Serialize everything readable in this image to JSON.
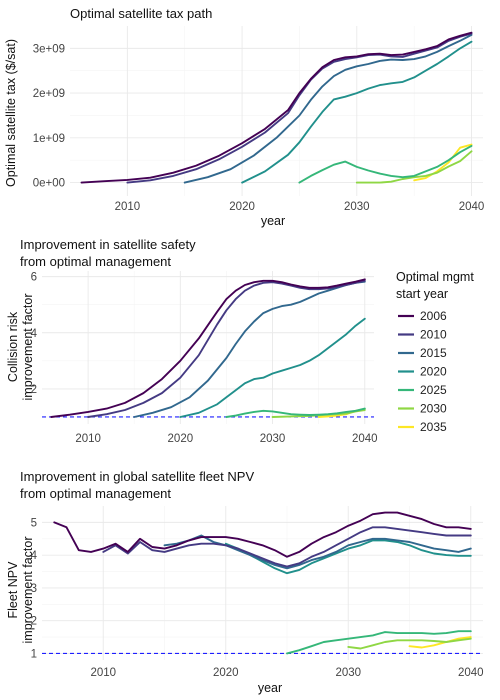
{
  "palette": {
    "2006": "#440154",
    "2010": "#443a83",
    "2015": "#31688e",
    "2020": "#21908c",
    "2025": "#35b779",
    "2030": "#8fd744",
    "2035": "#fde725",
    "baseline": "#1f1fff"
  },
  "legend": {
    "title_line1": "Optimal mgmt",
    "title_line2": "start year",
    "items": [
      "2006",
      "2010",
      "2015",
      "2020",
      "2025",
      "2030",
      "2035"
    ]
  },
  "chart_data": [
    {
      "id": "tax",
      "type": "line",
      "title": "Optimal satellite tax path",
      "subtitle": "",
      "xlabel": "year",
      "ylabel": "Optimal satellite tax ($/sat)",
      "xlim": [
        2005,
        2041
      ],
      "ylim": [
        -300000000.0,
        3500000000.0
      ],
      "xticks": [
        2010,
        2020,
        2030,
        2040
      ],
      "xtick_labels": [
        "2010",
        "2020",
        "2030",
        "2040"
      ],
      "yticks": [
        0,
        1000000000.0,
        2000000000.0,
        3000000000.0
      ],
      "ytick_labels": [
        "0e+00",
        "1e+09",
        "2e+09",
        "3e+09"
      ],
      "grid": true,
      "series": [
        {
          "name": "2006",
          "x": [
            2006,
            2008,
            2010,
            2012,
            2014,
            2016,
            2018,
            2020,
            2022,
            2024,
            2025,
            2026,
            2027,
            2028,
            2029,
            2030,
            2031,
            2032,
            2033,
            2034,
            2035,
            2036,
            2037,
            2038,
            2039,
            2040
          ],
          "y": [
            0.0,
            30000000.0,
            60000000.0,
            110000000.0,
            220000000.0,
            380000000.0,
            600000000.0,
            880000000.0,
            1200000000.0,
            1620000000.0,
            2000000000.0,
            2320000000.0,
            2580000000.0,
            2740000000.0,
            2800000000.0,
            2820000000.0,
            2870000000.0,
            2880000000.0,
            2850000000.0,
            2860000000.0,
            2920000000.0,
            2980000000.0,
            3050000000.0,
            3200000000.0,
            3280000000.0,
            3350000000.0
          ]
        },
        {
          "name": "2010",
          "x": [
            2010,
            2012,
            2014,
            2016,
            2018,
            2020,
            2022,
            2024,
            2025,
            2026,
            2027,
            2028,
            2029,
            2030,
            2031,
            2032,
            2033,
            2034,
            2035,
            2036,
            2037,
            2038,
            2039,
            2040
          ],
          "y": [
            0.0,
            50000000.0,
            150000000.0,
            300000000.0,
            520000000.0,
            800000000.0,
            1120000000.0,
            1550000000.0,
            1950000000.0,
            2300000000.0,
            2550000000.0,
            2700000000.0,
            2760000000.0,
            2800000000.0,
            2850000000.0,
            2860000000.0,
            2820000000.0,
            2810000000.0,
            2880000000.0,
            2950000000.0,
            3020000000.0,
            3170000000.0,
            3260000000.0,
            3330000000.0
          ]
        },
        {
          "name": "2015",
          "x": [
            2015,
            2017,
            2019,
            2021,
            2023,
            2025,
            2026,
            2027,
            2028,
            2029,
            2030,
            2031,
            2032,
            2033,
            2034,
            2035,
            2036,
            2037,
            2038,
            2039,
            2040
          ],
          "y": [
            0.0,
            120000000.0,
            300000000.0,
            600000000.0,
            1000000000.0,
            1500000000.0,
            1850000000.0,
            2150000000.0,
            2380000000.0,
            2520000000.0,
            2600000000.0,
            2650000000.0,
            2720000000.0,
            2750000000.0,
            2740000000.0,
            2760000000.0,
            2820000000.0,
            2920000000.0,
            3050000000.0,
            3170000000.0,
            3300000000.0
          ]
        },
        {
          "name": "2020",
          "x": [
            2020,
            2022,
            2024,
            2025,
            2026,
            2027,
            2028,
            2029,
            2030,
            2031,
            2032,
            2033,
            2034,
            2035,
            2036,
            2037,
            2038,
            2039,
            2040
          ],
          "y": [
            0.0,
            250000000.0,
            620000000.0,
            900000000.0,
            1250000000.0,
            1580000000.0,
            1860000000.0,
            1920000000.0,
            2000000000.0,
            2100000000.0,
            2180000000.0,
            2220000000.0,
            2250000000.0,
            2350000000.0,
            2500000000.0,
            2650000000.0,
            2820000000.0,
            3000000000.0,
            3150000000.0
          ]
        },
        {
          "name": "2025",
          "x": [
            2025,
            2026,
            2027,
            2028,
            2029,
            2030,
            2031,
            2032,
            2033,
            2034,
            2035,
            2036,
            2037,
            2038,
            2039,
            2040
          ],
          "y": [
            0.0,
            150000000.0,
            280000000.0,
            400000000.0,
            470000000.0,
            350000000.0,
            270000000.0,
            200000000.0,
            150000000.0,
            120000000.0,
            150000000.0,
            250000000.0,
            350000000.0,
            500000000.0,
            680000000.0,
            820000000.0
          ]
        },
        {
          "name": "2030",
          "x": [
            2030,
            2031,
            2032,
            2033,
            2034,
            2035,
            2036,
            2037,
            2038,
            2039,
            2040
          ],
          "y": [
            0.0,
            0.0,
            0.0,
            20000000.0,
            80000000.0,
            120000000.0,
            150000000.0,
            220000000.0,
            360000000.0,
            480000000.0,
            700000000.0
          ]
        },
        {
          "name": "2035",
          "x": [
            2035,
            2036,
            2037,
            2038,
            2039,
            2040
          ],
          "y": [
            50000000.0,
            100000000.0,
            250000000.0,
            450000000.0,
            780000000.0,
            850000000.0
          ]
        }
      ]
    },
    {
      "id": "safety",
      "type": "line",
      "title": "Improvement in satellite safety",
      "subtitle": "from optimal management",
      "xlabel": "",
      "ylabel": "Collision risk improvement factor",
      "ylabel_line1": "Collision risk",
      "ylabel_line2": "improvement factor",
      "xlim": [
        2005,
        2041
      ],
      "ylim": [
        0.75,
        6.2
      ],
      "xticks": [
        2010,
        2020,
        2030,
        2040
      ],
      "xtick_labels": [
        "2010",
        "2020",
        "2030",
        "2040"
      ],
      "yticks": [
        2,
        4,
        6
      ],
      "ytick_labels": [
        "2",
        "4",
        "6"
      ],
      "baseline": 1,
      "grid": true,
      "series": [
        {
          "name": "2006",
          "x": [
            2006,
            2008,
            2010,
            2012,
            2014,
            2016,
            2018,
            2020,
            2022,
            2024,
            2025,
            2026,
            2027,
            2028,
            2029,
            2030,
            2031,
            2032,
            2033,
            2034,
            2035,
            2036,
            2037,
            2038,
            2039,
            2040
          ],
          "y": [
            1.0,
            1.08,
            1.18,
            1.3,
            1.5,
            1.85,
            2.35,
            3.0,
            3.8,
            4.75,
            5.2,
            5.5,
            5.7,
            5.8,
            5.85,
            5.85,
            5.8,
            5.72,
            5.65,
            5.6,
            5.6,
            5.62,
            5.68,
            5.75,
            5.82,
            5.9
          ]
        },
        {
          "name": "2010",
          "x": [
            2010,
            2012,
            2014,
            2016,
            2018,
            2020,
            2022,
            2024,
            2025,
            2026,
            2027,
            2028,
            2029,
            2030,
            2031,
            2032,
            2033,
            2034,
            2035,
            2036,
            2037,
            2038,
            2039,
            2040
          ],
          "y": [
            1.0,
            1.1,
            1.25,
            1.5,
            1.85,
            2.4,
            3.2,
            4.3,
            4.8,
            5.2,
            5.5,
            5.68,
            5.78,
            5.8,
            5.75,
            5.68,
            5.6,
            5.55,
            5.55,
            5.58,
            5.63,
            5.7,
            5.78,
            5.85
          ]
        },
        {
          "name": "2015",
          "x": [
            2015,
            2017,
            2019,
            2021,
            2023,
            2025,
            2026,
            2027,
            2028,
            2029,
            2030,
            2031,
            2032,
            2033,
            2034,
            2035,
            2036,
            2037,
            2038,
            2039,
            2040
          ],
          "y": [
            1.0,
            1.15,
            1.35,
            1.7,
            2.3,
            3.1,
            3.6,
            4.05,
            4.4,
            4.7,
            4.85,
            4.95,
            5.0,
            5.1,
            5.25,
            5.4,
            5.5,
            5.6,
            5.7,
            5.78,
            5.82
          ]
        },
        {
          "name": "2020",
          "x": [
            2020,
            2022,
            2024,
            2025,
            2026,
            2027,
            2028,
            2029,
            2030,
            2031,
            2032,
            2033,
            2034,
            2035,
            2036,
            2037,
            2038,
            2039,
            2040
          ],
          "y": [
            1.0,
            1.15,
            1.45,
            1.7,
            1.95,
            2.2,
            2.35,
            2.4,
            2.55,
            2.65,
            2.75,
            2.85,
            3.0,
            3.2,
            3.45,
            3.7,
            3.95,
            4.25,
            4.5
          ]
        },
        {
          "name": "2025",
          "x": [
            2025,
            2026,
            2027,
            2028,
            2029,
            2030,
            2031,
            2032,
            2033,
            2034,
            2035,
            2036,
            2037,
            2038,
            2039,
            2040
          ],
          "y": [
            1.0,
            1.05,
            1.12,
            1.18,
            1.22,
            1.2,
            1.15,
            1.1,
            1.08,
            1.07,
            1.08,
            1.1,
            1.13,
            1.18,
            1.22,
            1.3
          ]
        },
        {
          "name": "2030",
          "x": [
            2030,
            2032,
            2034,
            2036,
            2038,
            2039,
            2040
          ],
          "y": [
            1.0,
            1.02,
            1.04,
            1.08,
            1.12,
            1.2,
            1.25
          ]
        },
        {
          "name": "2035",
          "x": [
            2035,
            2036,
            2037,
            2038,
            2039,
            2040
          ],
          "y": [
            1.0,
            1.02,
            1.05,
            1.1,
            1.22,
            1.28
          ]
        }
      ]
    },
    {
      "id": "npv",
      "type": "line",
      "title": "Improvement in global satellite fleet NPV",
      "subtitle": "from optimal management",
      "xlabel": "year",
      "ylabel": "Fleet NPV improvement factor",
      "ylabel_line1": "Fleet NPV",
      "ylabel_line2": "improvement factor",
      "xlim": [
        2005,
        2041
      ],
      "ylim": [
        0.8,
        5.5
      ],
      "xticks": [
        2010,
        2020,
        2030,
        2040
      ],
      "xtick_labels": [
        "2010",
        "2020",
        "2030",
        "2040"
      ],
      "yticks": [
        1,
        2,
        3,
        4,
        5
      ],
      "ytick_labels": [
        "1",
        "2",
        "3",
        "4",
        "5"
      ],
      "baseline": 1,
      "grid": true,
      "series": [
        {
          "name": "2006",
          "x": [
            2006,
            2007,
            2008,
            2009,
            2010,
            2011,
            2012,
            2013,
            2014,
            2015,
            2016,
            2017,
            2018,
            2019,
            2020,
            2021,
            2022,
            2023,
            2024,
            2025,
            2026,
            2027,
            2028,
            2029,
            2030,
            2031,
            2032,
            2033,
            2034,
            2035,
            2036,
            2037,
            2038,
            2039,
            2040
          ],
          "y": [
            5.0,
            4.85,
            4.15,
            4.1,
            4.2,
            4.35,
            4.1,
            4.5,
            4.25,
            4.2,
            4.3,
            4.45,
            4.55,
            4.55,
            4.55,
            4.5,
            4.4,
            4.3,
            4.15,
            3.95,
            4.1,
            4.35,
            4.55,
            4.7,
            4.9,
            5.05,
            5.25,
            5.3,
            5.3,
            5.2,
            5.1,
            4.95,
            4.85,
            4.85,
            4.8
          ]
        },
        {
          "name": "2010",
          "x": [
            2010,
            2011,
            2012,
            2013,
            2014,
            2015,
            2016,
            2017,
            2018,
            2019,
            2020,
            2021,
            2022,
            2023,
            2024,
            2025,
            2026,
            2027,
            2028,
            2029,
            2030,
            2031,
            2032,
            2033,
            2034,
            2035,
            2036,
            2037,
            2038,
            2039,
            2040
          ],
          "y": [
            4.1,
            4.3,
            4.05,
            4.4,
            4.15,
            4.1,
            4.2,
            4.3,
            4.35,
            4.35,
            4.3,
            4.2,
            4.05,
            3.9,
            3.75,
            3.65,
            3.75,
            3.95,
            4.1,
            4.3,
            4.5,
            4.7,
            4.85,
            4.85,
            4.8,
            4.75,
            4.7,
            4.65,
            4.6,
            4.6,
            4.6
          ]
        },
        {
          "name": "2015",
          "x": [
            2015,
            2016,
            2017,
            2018,
            2019,
            2020,
            2021,
            2022,
            2023,
            2024,
            2025,
            2026,
            2027,
            2028,
            2029,
            2030,
            2031,
            2032,
            2033,
            2034,
            2035,
            2036,
            2037,
            2038,
            2039,
            2040
          ],
          "y": [
            4.3,
            4.35,
            4.45,
            4.6,
            4.4,
            4.3,
            4.15,
            4.0,
            3.85,
            3.7,
            3.6,
            3.7,
            3.85,
            3.95,
            4.1,
            4.3,
            4.4,
            4.5,
            4.5,
            4.45,
            4.4,
            4.3,
            4.2,
            4.15,
            4.1,
            4.2
          ]
        },
        {
          "name": "2020",
          "x": [
            2020,
            2021,
            2022,
            2023,
            2024,
            2025,
            2026,
            2027,
            2028,
            2029,
            2030,
            2031,
            2032,
            2033,
            2034,
            2035,
            2036,
            2037,
            2038,
            2039,
            2040
          ],
          "y": [
            4.35,
            4.2,
            4.0,
            3.8,
            3.6,
            3.45,
            3.55,
            3.75,
            3.9,
            4.05,
            4.2,
            4.3,
            4.45,
            4.45,
            4.4,
            4.3,
            4.15,
            4.05,
            4.0,
            3.98,
            3.98
          ]
        },
        {
          "name": "2025",
          "x": [
            2025,
            2026,
            2027,
            2028,
            2029,
            2030,
            2031,
            2032,
            2033,
            2034,
            2035,
            2036,
            2037,
            2038,
            2039,
            2040
          ],
          "y": [
            1.0,
            1.1,
            1.22,
            1.35,
            1.4,
            1.45,
            1.5,
            1.55,
            1.65,
            1.62,
            1.62,
            1.62,
            1.6,
            1.62,
            1.68,
            1.68
          ]
        },
        {
          "name": "2030",
          "x": [
            2030,
            2031,
            2032,
            2033,
            2034,
            2035,
            2036,
            2037,
            2038,
            2039,
            2040
          ],
          "y": [
            1.2,
            1.15,
            1.25,
            1.35,
            1.4,
            1.4,
            1.4,
            1.38,
            1.35,
            1.4,
            1.45
          ]
        },
        {
          "name": "2035",
          "x": [
            2035,
            2036,
            2037,
            2038,
            2039,
            2040
          ],
          "y": [
            1.22,
            1.18,
            1.25,
            1.35,
            1.45,
            1.5
          ]
        }
      ]
    }
  ]
}
